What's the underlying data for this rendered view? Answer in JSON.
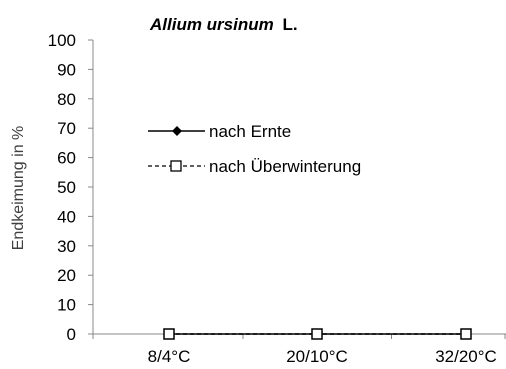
{
  "chart_data": {
    "type": "line",
    "title": {
      "species": "Allium ursinum",
      "authority": "L."
    },
    "xlabel": "",
    "ylabel": "Endkeimung in %",
    "categories": [
      "8/4°C",
      "20/10°C",
      "32/20°C"
    ],
    "ylim": [
      0,
      100
    ],
    "yticks": [
      0,
      10,
      20,
      30,
      40,
      50,
      60,
      70,
      80,
      90,
      100
    ],
    "grid": false,
    "legend_position": "left",
    "series": [
      {
        "name": "nach Ernte",
        "values": [
          0,
          0,
          0
        ],
        "line_style": "solid",
        "marker": "filled-diamond",
        "color": "#000000"
      },
      {
        "name": "nach Überwinterung",
        "values": [
          0,
          0,
          0
        ],
        "line_style": "dashed",
        "marker": "open-square",
        "color": "#000000"
      }
    ]
  }
}
